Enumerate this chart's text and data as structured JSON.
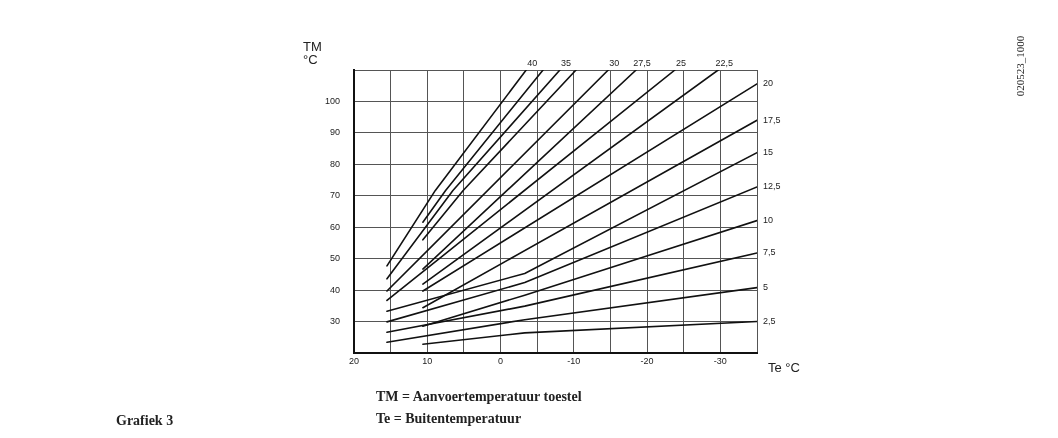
{
  "chart_data": {
    "type": "line",
    "ylabel": "TM\n°C",
    "xlabel": "Te °C",
    "xlim": [
      20,
      -35
    ],
    "ylim": [
      20,
      110
    ],
    "xticks": [
      20,
      {
        "value": 15,
        "label": null
      },
      10,
      {
        "value": 5,
        "label": null
      },
      0,
      {
        "value": -5,
        "label": null
      },
      -10,
      {
        "value": -15,
        "label": null
      },
      -20,
      {
        "value": -25,
        "label": null
      },
      -30,
      {
        "value": -35,
        "label": null
      }
    ],
    "yticks": [
      30,
      40,
      50,
      60,
      70,
      80,
      90,
      100,
      {
        "value": 110,
        "label": null
      }
    ],
    "grid": true,
    "legend": false,
    "marker": "none",
    "line_style": "solid",
    "series": [
      {
        "name": "40",
        "color": "#111111",
        "x": [
          15.5,
          8.9,
          -3.5
        ],
        "values": [
          47.7,
          71.7,
          110
        ]
      },
      {
        "color": "#111111",
        "x": [
          10.6,
          7.5,
          -5.8
        ],
        "values": [
          61.6,
          71.7,
          110
        ]
      },
      {
        "name": "35",
        "color": "#111111",
        "x": [
          15.5,
          6.5,
          -8.1
        ],
        "values": [
          43.6,
          71.7,
          110
        ]
      },
      {
        "color": "#111111",
        "x": [
          10.6,
          5.1,
          -10.3
        ],
        "values": [
          56,
          71.7,
          110
        ]
      },
      {
        "name": "30",
        "color": "#111111",
        "x": [
          15.5,
          -14.7
        ],
        "values": [
          39.7,
          110
        ]
      },
      {
        "name": "27,5",
        "color": "#111111",
        "x": [
          10.6,
          -18.5
        ],
        "values": [
          46.7,
          110
        ]
      },
      {
        "name": "25",
        "color": "#111111",
        "x": [
          15.5,
          -23.8
        ],
        "values": [
          36.7,
          110
        ]
      },
      {
        "name": "22,5",
        "color": "#111111",
        "x": [
          10.6,
          -29.7
        ],
        "values": [
          41.9,
          110
        ]
      },
      {
        "name": "20",
        "color": "#111111",
        "x": [
          10.6,
          -35
        ],
        "values": [
          39.7,
          105.6
        ]
      },
      {
        "name": "17,5",
        "color": "#111111",
        "x": [
          10.6,
          -35
        ],
        "values": [
          34.4,
          94
        ]
      },
      {
        "name": "15",
        "color": "#111111",
        "x": [
          15.5,
          -3.3,
          -35
        ],
        "values": [
          33.3,
          45.3,
          83.7
        ]
      },
      {
        "name": "12,5",
        "color": "#111111",
        "x": [
          15.5,
          -3.3,
          -35
        ],
        "values": [
          29.9,
          42.4,
          72.8
        ]
      },
      {
        "name": "10",
        "color": "#111111",
        "x": [
          10.6,
          -3.3,
          -35
        ],
        "values": [
          28.5,
          38.4,
          62.1
        ]
      },
      {
        "name": "7,5",
        "color": "#111111",
        "x": [
          15.5,
          -3.3,
          -35
        ],
        "values": [
          26.6,
          34.9,
          51.8
        ]
      },
      {
        "name": "5",
        "color": "#111111",
        "x": [
          15.5,
          -3.3,
          -35
        ],
        "values": [
          23.4,
          30.6,
          40.8
        ]
      },
      {
        "name": "2,5",
        "color": "#111111",
        "x": [
          10.6,
          -3.3,
          -35
        ],
        "values": [
          22.8,
          26.4,
          30
        ]
      }
    ],
    "annotations": [
      "TM = Aanvoertemperatuur toestel",
      "Te = Buitentemperatuur",
      "Grafiek 3",
      "020523_1000"
    ]
  }
}
